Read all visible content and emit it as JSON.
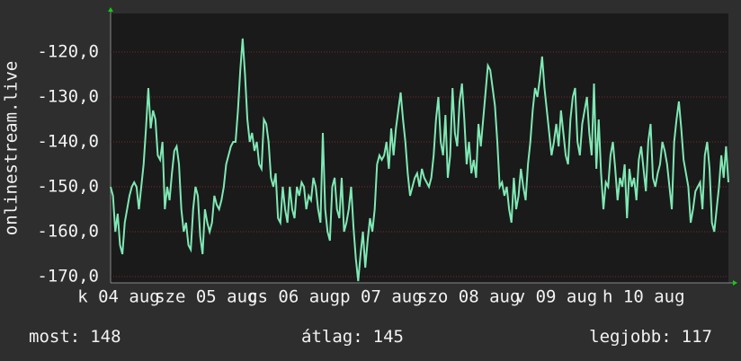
{
  "chart_data": {
    "type": "line",
    "y_label": "onlinestream.live",
    "x_labels": [
      "k 04 aug",
      "sze 05 aug",
      "cs 06 aug",
      "p 07 aug",
      "szo 08 aug",
      "v 09 aug",
      "h 10 aug"
    ],
    "ylim": [
      -171.4,
      -111.4
    ],
    "yticks": [
      {
        "value": -120,
        "label": "-120,0"
      },
      {
        "value": -130,
        "label": "-130,0"
      },
      {
        "value": -140,
        "label": "-140,0"
      },
      {
        "value": -150,
        "label": "-150,0"
      },
      {
        "value": -160,
        "label": "-160,0"
      },
      {
        "value": -170,
        "label": "-170,0"
      }
    ],
    "grid": true,
    "series": [
      {
        "color": "#7fe8b4",
        "values": [
          -150,
          -152,
          -160,
          -156,
          -163,
          -165,
          -158,
          -155,
          -152,
          -150,
          -149,
          -150,
          -155,
          -150,
          -145,
          -137,
          -128,
          -137,
          -133,
          -135,
          -143,
          -144,
          -140,
          -155,
          -150,
          -153,
          -147,
          -142,
          -141,
          -145,
          -155,
          -160,
          -158,
          -163,
          -164,
          -155,
          -150,
          -152,
          -161,
          -165,
          -155,
          -158,
          -160,
          -158,
          -152,
          -154,
          -155,
          -153,
          -150,
          -145,
          -143,
          -141,
          -140,
          -140,
          -133,
          -124,
          -117,
          -125,
          -135,
          -140,
          -138,
          -142,
          -140,
          -145,
          -146,
          -135,
          -136,
          -140,
          -148,
          -150,
          -147,
          -157,
          -158,
          -150,
          -155,
          -158,
          -150,
          -155,
          -157,
          -150,
          -152,
          -149,
          -150,
          -155,
          -152,
          -153,
          -148,
          -150,
          -155,
          -158,
          -138,
          -155,
          -160,
          -162,
          -150,
          -148,
          -155,
          -157,
          -148,
          -160,
          -158,
          -155,
          -150,
          -159,
          -166,
          -171,
          -165,
          -160,
          -168,
          -162,
          -157,
          -160,
          -155,
          -145,
          -143,
          -144,
          -143,
          -140,
          -146,
          -137,
          -143,
          -137,
          -133,
          -129,
          -135,
          -140,
          -147,
          -152,
          -150,
          -148,
          -147,
          -150,
          -146,
          -148,
          -149,
          -150,
          -148,
          -143,
          -135,
          -130,
          -140,
          -143,
          -134,
          -148,
          -143,
          -128,
          -138,
          -141,
          -131,
          -127,
          -135,
          -145,
          -140,
          -147,
          -144,
          -148,
          -136,
          -141,
          -135,
          -129,
          -123,
          -124,
          -128,
          -132,
          -140,
          -150,
          -149,
          -152,
          -150,
          -155,
          -158,
          -148,
          -155,
          -152,
          -146,
          -150,
          -153,
          -145,
          -140,
          -133,
          -128,
          -130,
          -126,
          -121,
          -128,
          -133,
          -138,
          -143,
          -140,
          -136,
          -141,
          -133,
          -138,
          -143,
          -145,
          -135,
          -130,
          -128,
          -140,
          -143,
          -136,
          -133,
          -130,
          -138,
          -143,
          -127,
          -146,
          -135,
          -147,
          -155,
          -149,
          -150,
          -143,
          -140,
          -146,
          -153,
          -148,
          -150,
          -145,
          -157,
          -146,
          -150,
          -148,
          -153,
          -144,
          -141,
          -146,
          -151,
          -140,
          -136,
          -148,
          -150,
          -147,
          -145,
          -140,
          -142,
          -145,
          -150,
          -155,
          -140,
          -135,
          -131,
          -137,
          -144,
          -147,
          -150,
          -158,
          -155,
          -151,
          -150,
          -149,
          -155,
          -143,
          -140,
          -146,
          -158,
          -160,
          -155,
          -150,
          -143,
          -148,
          -141,
          -149
        ]
      }
    ],
    "stats": [
      {
        "label": "most:",
        "value": 148
      },
      {
        "label": "átlag:",
        "value": 145
      },
      {
        "label": "legjobb:",
        "value": 117
      }
    ]
  }
}
